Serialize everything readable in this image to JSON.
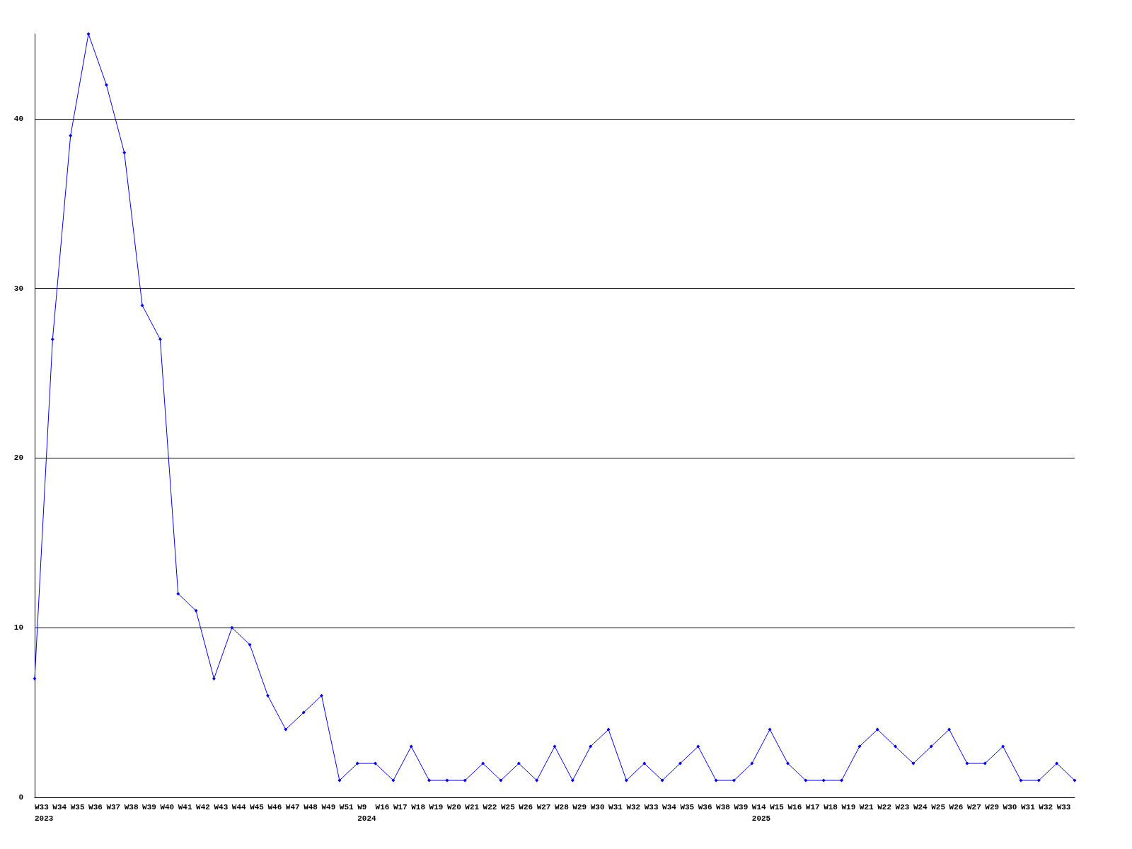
{
  "chart_data": {
    "type": "line",
    "categories": [
      "W33\n2023",
      "W34",
      "W35",
      "W36",
      "W37",
      "W38",
      "W39",
      "W40",
      "W41",
      "W42",
      "W43",
      "W44",
      "W45",
      "W46",
      "W47",
      "W48",
      "W49",
      "W51",
      "W9\n2024",
      "W16",
      "W17",
      "W18",
      "W19",
      "W20",
      "W21",
      "W22",
      "W25",
      "W26",
      "W27",
      "W28",
      "W29",
      "W30",
      "W31",
      "W32",
      "W33",
      "W34",
      "W35",
      "W36",
      "W38",
      "W39",
      "W14\n2025",
      "W15",
      "W16",
      "W17",
      "W18",
      "W19",
      "W21",
      "W22",
      "W23",
      "W24",
      "W25",
      "W26",
      "W27",
      "W29",
      "W30",
      "W31",
      "W32",
      "W33",
      null
    ],
    "series": [
      {
        "color": "#0000ff",
        "values": [
          7,
          27,
          39,
          45,
          42,
          38,
          29,
          27,
          12,
          11,
          7,
          10,
          9,
          6,
          4,
          5,
          6,
          1,
          2,
          2,
          1,
          3,
          1,
          1,
          1,
          2,
          1,
          2,
          1,
          3,
          1,
          3,
          4,
          1,
          2,
          1,
          2,
          3,
          1,
          1,
          2,
          4,
          2,
          1,
          1,
          1,
          3,
          4,
          3,
          2,
          3,
          4,
          2,
          2,
          3,
          1,
          1,
          2,
          1
        ]
      }
    ],
    "ylim": [
      0,
      45
    ],
    "yticks": [
      0,
      10,
      20,
      30,
      40
    ],
    "grid": "y",
    "marker": "diamond",
    "line_style": "solid"
  }
}
